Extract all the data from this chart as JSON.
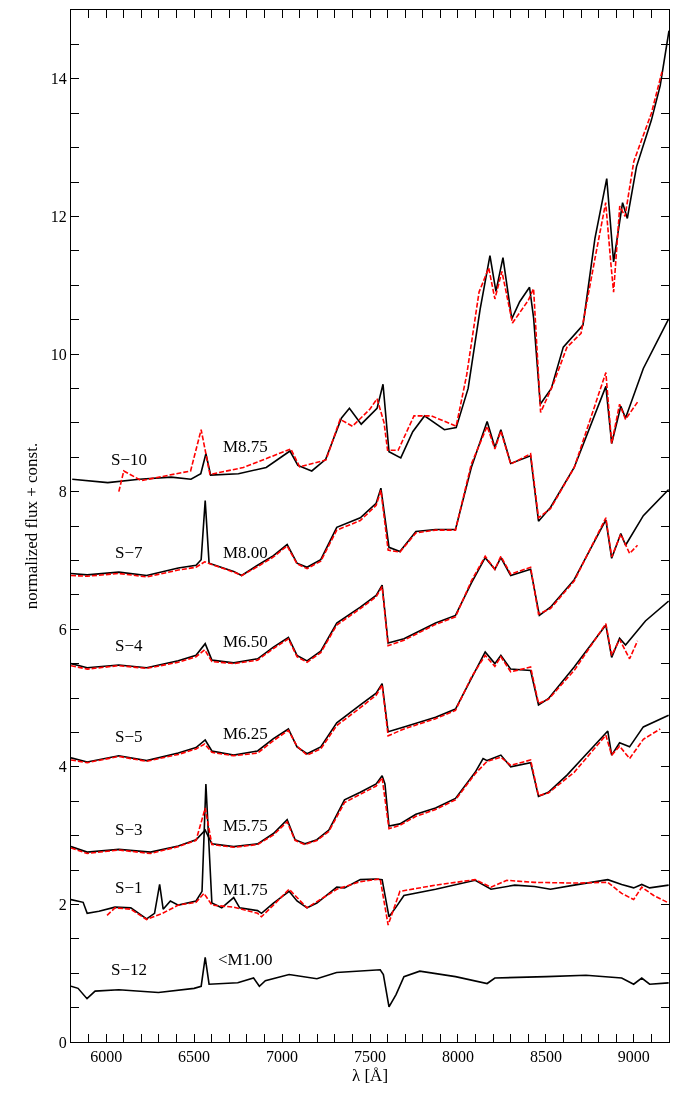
{
  "chart_data": {
    "type": "line",
    "xlabel": "λ [Å]",
    "ylabel": "normalized flux + const.",
    "xlim": [
      5800,
      9200
    ],
    "ylim": [
      0,
      15
    ],
    "xticks": [
      {
        "value": 5900,
        "label": null
      },
      6000,
      {
        "value": 6100,
        "label": null
      },
      {
        "value": 6200,
        "label": null
      },
      {
        "value": 6300,
        "label": null
      },
      {
        "value": 6400,
        "label": null
      },
      6500,
      {
        "value": 6600,
        "label": null
      },
      {
        "value": 6700,
        "label": null
      },
      {
        "value": 6800,
        "label": null
      },
      {
        "value": 6900,
        "label": null
      },
      7000,
      {
        "value": 7100,
        "label": null
      },
      {
        "value": 7200,
        "label": null
      },
      {
        "value": 7300,
        "label": null
      },
      {
        "value": 7400,
        "label": null
      },
      7500,
      {
        "value": 7600,
        "label": null
      },
      {
        "value": 7700,
        "label": null
      },
      {
        "value": 7800,
        "label": null
      },
      {
        "value": 7900,
        "label": null
      },
      8000,
      {
        "value": 8100,
        "label": null
      },
      {
        "value": 8200,
        "label": null
      },
      {
        "value": 8300,
        "label": null
      },
      {
        "value": 8400,
        "label": null
      },
      8500,
      {
        "value": 8600,
        "label": null
      },
      {
        "value": 8700,
        "label": null
      },
      {
        "value": 8800,
        "label": null
      },
      {
        "value": 8900,
        "label": null
      },
      9000,
      {
        "value": 9100,
        "label": null
      }
    ],
    "yticks": [
      0,
      {
        "value": 0.5,
        "label": null
      },
      {
        "value": 1,
        "label": null
      },
      {
        "value": 1.5,
        "label": null
      },
      2,
      {
        "value": 2.5,
        "label": null
      },
      {
        "value": 3,
        "label": null
      },
      {
        "value": 3.5,
        "label": null
      },
      4,
      {
        "value": 4.5,
        "label": null
      },
      {
        "value": 5,
        "label": null
      },
      {
        "value": 5.5,
        "label": null
      },
      6,
      {
        "value": 6.5,
        "label": null
      },
      {
        "value": 7,
        "label": null
      },
      {
        "value": 7.5,
        "label": null
      },
      8,
      {
        "value": 8.5,
        "label": null
      },
      {
        "value": 9,
        "label": null
      },
      {
        "value": 9.5,
        "label": null
      },
      10,
      {
        "value": 10.5,
        "label": null
      },
      {
        "value": 11,
        "label": null
      },
      {
        "value": 11.5,
        "label": null
      },
      12,
      {
        "value": 12.5,
        "label": null
      },
      {
        "value": 13,
        "label": null
      },
      {
        "value": 13.5,
        "label": null
      },
      14,
      {
        "value": 14.5,
        "label": null
      }
    ],
    "grid": false,
    "legend": false,
    "marker": "none",
    "series": [
      {
        "name": "S−12",
        "color": "#000000",
        "line_style": "solid",
        "x": [
          5800,
          5840,
          5891,
          5937,
          6072,
          6297,
          6500,
          6540,
          6563,
          6585,
          6748,
          6838,
          6871,
          6905,
          7040,
          7198,
          7310,
          7558,
          7576,
          7608,
          7648,
          7693,
          7783,
          7986,
          8166,
          8210,
          8503,
          8728,
          8931,
          8999,
          9045,
          9090,
          9198
        ],
        "values": [
          0.81,
          0.78,
          0.63,
          0.74,
          0.76,
          0.72,
          0.78,
          0.81,
          1.23,
          0.84,
          0.86,
          0.93,
          0.81,
          0.89,
          0.98,
          0.92,
          1.01,
          1.05,
          0.98,
          0.51,
          0.69,
          0.95,
          1.03,
          0.95,
          0.85,
          0.93,
          0.95,
          0.97,
          0.93,
          0.84,
          0.93,
          0.84,
          0.86
        ]
      },
      {
        "name": "S−1",
        "color": "#000000",
        "line_style": "solid",
        "x": [
          5800,
          5869,
          5892,
          5959,
          6050,
          6140,
          6230,
          6275,
          6304,
          6324,
          6365,
          6410,
          6511,
          6545,
          6567,
          6601,
          6657,
          6725,
          6759,
          6861,
          6883,
          6951,
          7040,
          7085,
          7142,
          7198,
          7311,
          7355,
          7445,
          7535,
          7569,
          7608,
          7648,
          7693,
          7873,
          8098,
          8188,
          8323,
          8435,
          8526,
          8661,
          8852,
          8931,
          8999,
          9045,
          9090,
          9198
        ],
        "values": [
          2.07,
          2.03,
          1.87,
          1.9,
          1.96,
          1.95,
          1.79,
          1.87,
          2.29,
          1.93,
          2.05,
          1.99,
          2.05,
          2.19,
          3.75,
          2.02,
          1.95,
          2.1,
          1.95,
          1.91,
          1.87,
          2.02,
          2.19,
          2.05,
          1.95,
          2.02,
          2.25,
          2.24,
          2.36,
          2.37,
          2.36,
          1.82,
          1.96,
          2.13,
          2.22,
          2.35,
          2.22,
          2.28,
          2.26,
          2.22,
          2.28,
          2.36,
          2.29,
          2.24,
          2.29,
          2.24,
          2.28
        ]
      },
      {
        "name": "M1.75",
        "color": "#ff0000",
        "line_style": "dashed",
        "x": [
          6005,
          6050,
          6140,
          6230,
          6320,
          6410,
          6511,
          6556,
          6601,
          6725,
          6861,
          6883,
          6951,
          7040,
          7142,
          7311,
          7445,
          7558,
          7603,
          7670,
          7873,
          8098,
          8188,
          8278,
          8435,
          8661,
          8852,
          8931,
          8999,
          9045,
          9113,
          9198
        ],
        "values": [
          1.84,
          1.95,
          1.93,
          1.78,
          1.87,
          1.99,
          2.03,
          2.16,
          1.99,
          1.96,
          1.87,
          1.82,
          1.99,
          2.22,
          1.95,
          2.22,
          2.33,
          2.37,
          1.7,
          2.19,
          2.28,
          2.36,
          2.25,
          2.35,
          2.32,
          2.31,
          2.32,
          2.16,
          2.07,
          2.25,
          2.13,
          2.02
        ]
      },
      {
        "name": "S−3",
        "color": "#000000",
        "line_style": "solid",
        "x": [
          5800,
          5892,
          6072,
          6252,
          6410,
          6511,
          6563,
          6601,
          6725,
          6861,
          6951,
          7029,
          7074,
          7130,
          7198,
          7266,
          7355,
          7445,
          7535,
          7569,
          7585,
          7608,
          7670,
          7761,
          7873,
          7986,
          8098,
          8143,
          8166,
          8244,
          8300,
          8413,
          8458,
          8514,
          8620,
          8852,
          8874,
          8919,
          8976,
          9054,
          9198
        ],
        "values": [
          2.84,
          2.76,
          2.8,
          2.76,
          2.85,
          2.94,
          3.08,
          2.88,
          2.84,
          2.88,
          3.03,
          3.23,
          2.94,
          2.88,
          2.94,
          3.08,
          3.52,
          3.63,
          3.75,
          3.87,
          3.75,
          3.14,
          3.17,
          3.31,
          3.4,
          3.54,
          3.92,
          4.12,
          4.09,
          4.17,
          4.0,
          4.06,
          3.57,
          3.63,
          3.88,
          4.52,
          4.17,
          4.35,
          4.29,
          4.58,
          4.75
        ]
      },
      {
        "name": "M5.75",
        "color": "#ff0000",
        "line_style": "dashed",
        "x": [
          5800,
          5892,
          6072,
          6252,
          6410,
          6511,
          6563,
          6601,
          6725,
          6861,
          6951,
          7029,
          7074,
          7130,
          7198,
          7266,
          7355,
          7445,
          7535,
          7569,
          7608,
          7670,
          7761,
          7873,
          7986,
          8098,
          8166,
          8244,
          8300,
          8413,
          8458,
          8514,
          8661,
          8841,
          8874,
          8919,
          8976,
          9054,
          9150
        ],
        "values": [
          2.82,
          2.74,
          2.79,
          2.74,
          2.84,
          2.93,
          3.4,
          2.87,
          2.83,
          2.87,
          3.01,
          3.2,
          2.93,
          2.87,
          2.93,
          3.06,
          3.48,
          3.6,
          3.72,
          3.84,
          3.1,
          3.15,
          3.28,
          3.38,
          3.52,
          3.9,
          4.08,
          4.14,
          4.02,
          4.1,
          3.58,
          3.62,
          3.92,
          4.46,
          4.17,
          4.3,
          4.12,
          4.4,
          4.55
        ]
      },
      {
        "name": "S−5",
        "color": "#000000",
        "line_style": "solid",
        "x": [
          5800,
          5892,
          6072,
          6230,
          6410,
          6511,
          6563,
          6601,
          6725,
          6861,
          6951,
          7036,
          7085,
          7142,
          7220,
          7311,
          7445,
          7535,
          7569,
          7603,
          7693,
          7873,
          7986,
          8076,
          8155,
          8210,
          8244,
          8300,
          8413,
          8458,
          8514,
          8661,
          8841,
          8874,
          8919,
          8953,
          9066,
          9198
        ],
        "values": [
          4.13,
          4.07,
          4.16,
          4.09,
          4.2,
          4.28,
          4.39,
          4.23,
          4.17,
          4.23,
          4.41,
          4.55,
          4.29,
          4.19,
          4.29,
          4.64,
          4.9,
          5.07,
          5.21,
          4.51,
          4.58,
          4.72,
          4.84,
          5.28,
          5.67,
          5.5,
          5.62,
          5.42,
          5.4,
          4.9,
          4.99,
          5.45,
          6.06,
          5.59,
          5.87,
          5.77,
          6.12,
          6.41
        ]
      },
      {
        "name": "M6.25",
        "color": "#ff0000",
        "line_style": "dashed",
        "x": [
          5800,
          5892,
          6072,
          6230,
          6410,
          6511,
          6560,
          6601,
          6725,
          6861,
          6951,
          7036,
          7085,
          7142,
          7220,
          7311,
          7445,
          7535,
          7569,
          7603,
          7693,
          7873,
          7986,
          8076,
          8155,
          8210,
          8244,
          8300,
          8413,
          8458,
          8514,
          8661,
          8841,
          8874,
          8919,
          8976,
          9021
        ],
        "values": [
          4.1,
          4.06,
          4.15,
          4.08,
          4.18,
          4.26,
          4.33,
          4.21,
          4.16,
          4.2,
          4.38,
          4.53,
          4.3,
          4.17,
          4.26,
          4.6,
          4.86,
          5.04,
          5.19,
          4.45,
          4.55,
          4.7,
          4.82,
          5.3,
          5.62,
          5.46,
          5.6,
          5.38,
          5.45,
          4.92,
          4.98,
          5.4,
          6.08,
          5.62,
          5.85,
          5.57,
          5.83
        ]
      },
      {
        "name": "S−4",
        "color": "#000000",
        "line_style": "solid",
        "x": [
          5800,
          5892,
          6072,
          6230,
          6410,
          6511,
          6563,
          6601,
          6725,
          6861,
          6951,
          7036,
          7085,
          7142,
          7220,
          7311,
          7445,
          7535,
          7569,
          7603,
          7693,
          7873,
          7986,
          8076,
          8155,
          8210,
          8244,
          8300,
          8413,
          8463,
          8526,
          8661,
          8841,
          8874,
          8926,
          8953,
          9054,
          9198
        ],
        "values": [
          5.5,
          5.44,
          5.48,
          5.44,
          5.54,
          5.62,
          5.79,
          5.55,
          5.51,
          5.57,
          5.74,
          5.88,
          5.62,
          5.54,
          5.68,
          6.09,
          6.32,
          6.49,
          6.64,
          5.8,
          5.86,
          6.09,
          6.2,
          6.67,
          7.04,
          6.87,
          7.04,
          6.78,
          6.87,
          6.2,
          6.32,
          6.72,
          7.59,
          7.03,
          7.39,
          7.22,
          7.65,
          8.03
        ]
      },
      {
        "name": "M6.50",
        "color": "#ff0000",
        "line_style": "dashed",
        "x": [
          5800,
          5892,
          6072,
          6230,
          6410,
          6511,
          6560,
          6601,
          6725,
          6861,
          6951,
          7036,
          7085,
          7142,
          7220,
          7311,
          7445,
          7535,
          7569,
          7603,
          7693,
          7873,
          7986,
          8076,
          8155,
          8210,
          8244,
          8300,
          8413,
          8458,
          8526,
          8661,
          8841,
          8874,
          8926,
          8976,
          9021
        ],
        "values": [
          5.47,
          5.42,
          5.47,
          5.43,
          5.52,
          5.6,
          5.7,
          5.53,
          5.5,
          5.55,
          5.72,
          5.86,
          5.6,
          5.52,
          5.66,
          6.06,
          6.3,
          6.47,
          6.62,
          5.76,
          5.84,
          6.07,
          6.18,
          6.7,
          7.06,
          6.87,
          7.06,
          6.8,
          6.9,
          6.22,
          6.3,
          6.7,
          7.62,
          7.05,
          7.38,
          7.1,
          7.22
        ]
      },
      {
        "name": "S−7",
        "color": "#000000",
        "line_style": "solid",
        "x": [
          5800,
          5892,
          6072,
          6230,
          6410,
          6511,
          6540,
          6563,
          6585,
          6725,
          6770,
          6861,
          6951,
          7029,
          7085,
          7142,
          7220,
          7311,
          7445,
          7535,
          7562,
          7608,
          7670,
          7761,
          7873,
          7986,
          8076,
          8166,
          8210,
          8244,
          8300,
          8413,
          8458,
          8526,
          8661,
          8841,
          8874,
          8926,
          8953,
          9054,
          9198
        ],
        "values": [
          6.81,
          6.79,
          6.83,
          6.78,
          6.89,
          6.93,
          7.01,
          7.87,
          6.96,
          6.84,
          6.78,
          6.93,
          7.07,
          7.23,
          6.96,
          6.9,
          7.01,
          7.48,
          7.62,
          7.83,
          8.05,
          7.19,
          7.13,
          7.42,
          7.45,
          7.45,
          8.35,
          9.02,
          8.64,
          8.9,
          8.41,
          8.52,
          7.57,
          7.77,
          8.35,
          9.53,
          8.7,
          9.24,
          9.07,
          9.79,
          10.51
        ]
      },
      {
        "name": "M8.00",
        "color": "#ff0000",
        "line_style": "dashed",
        "x": [
          5800,
          5892,
          6072,
          6230,
          6410,
          6511,
          6560,
          6601,
          6725,
          6770,
          6861,
          6951,
          7029,
          7085,
          7142,
          7220,
          7311,
          7445,
          7535,
          7562,
          7603,
          7670,
          7761,
          7873,
          7986,
          8076,
          8166,
          8210,
          8244,
          8300,
          8413,
          8458,
          8526,
          8661,
          8841,
          8874,
          8919,
          8953,
          9021
        ],
        "values": [
          6.78,
          6.77,
          6.81,
          6.76,
          6.86,
          6.9,
          6.98,
          6.94,
          6.83,
          6.78,
          6.91,
          7.05,
          7.21,
          6.95,
          6.88,
          6.99,
          7.44,
          7.58,
          7.8,
          8.02,
          7.15,
          7.12,
          7.4,
          7.44,
          7.44,
          8.4,
          8.95,
          8.62,
          8.88,
          8.4,
          8.55,
          7.62,
          7.75,
          8.35,
          9.73,
          8.7,
          9.27,
          9.05,
          9.3
        ]
      },
      {
        "name": "S−10",
        "color": "#000000",
        "line_style": "solid",
        "x": [
          5807,
          6009,
          6189,
          6369,
          6482,
          6538,
          6567,
          6594,
          6752,
          6910,
          7045,
          7090,
          7169,
          7248,
          7338,
          7383,
          7450,
          7540,
          7574,
          7608,
          7675,
          7743,
          7810,
          7923,
          7990,
          8058,
          8126,
          8182,
          8216,
          8256,
          8306,
          8351,
          8407,
          8430,
          8468,
          8531,
          8599,
          8711,
          8779,
          8846,
          8885,
          8936,
          8963,
          9015,
          9100,
          9150,
          9200
        ],
        "values": [
          8.18,
          8.13,
          8.18,
          8.21,
          8.18,
          8.26,
          8.55,
          8.24,
          8.26,
          8.35,
          8.59,
          8.38,
          8.3,
          8.47,
          9.07,
          9.21,
          8.98,
          9.21,
          9.56,
          8.58,
          8.49,
          8.87,
          9.1,
          8.9,
          8.93,
          9.5,
          10.65,
          11.43,
          10.91,
          11.4,
          10.51,
          10.76,
          10.97,
          10.53,
          9.27,
          9.5,
          10.1,
          10.42,
          11.68,
          12.55,
          11.34,
          12.2,
          11.97,
          12.72,
          13.4,
          13.9,
          14.7
        ]
      },
      {
        "name": "M8.75",
        "color": "#ff0000",
        "line_style": "dashed",
        "x": [
          6072,
          6100,
          6200,
          6480,
          6540,
          6590,
          6780,
          7050,
          7100,
          7250,
          7330,
          7400,
          7500,
          7540,
          7580,
          7600,
          7660,
          7750,
          7850,
          7990,
          8050,
          8120,
          8175,
          8210,
          8250,
          8310,
          8400,
          8430,
          8470,
          8540,
          8620,
          8700,
          8780,
          8840,
          8870,
          8885,
          8920,
          8950,
          9000,
          9100,
          9160
        ],
        "values": [
          8.0,
          8.3,
          8.16,
          8.3,
          8.9,
          8.25,
          8.35,
          8.62,
          8.36,
          8.46,
          9.05,
          8.95,
          9.2,
          9.35,
          9.0,
          8.6,
          8.6,
          9.1,
          9.1,
          8.95,
          9.7,
          10.9,
          11.25,
          10.8,
          11.2,
          10.45,
          10.78,
          10.95,
          9.15,
          9.55,
          10.1,
          10.3,
          11.4,
          12.2,
          11.3,
          10.9,
          12.15,
          12.0,
          12.8,
          13.5,
          14.1
        ]
      }
    ],
    "annotations": [
      "<M1.00"
    ]
  }
}
